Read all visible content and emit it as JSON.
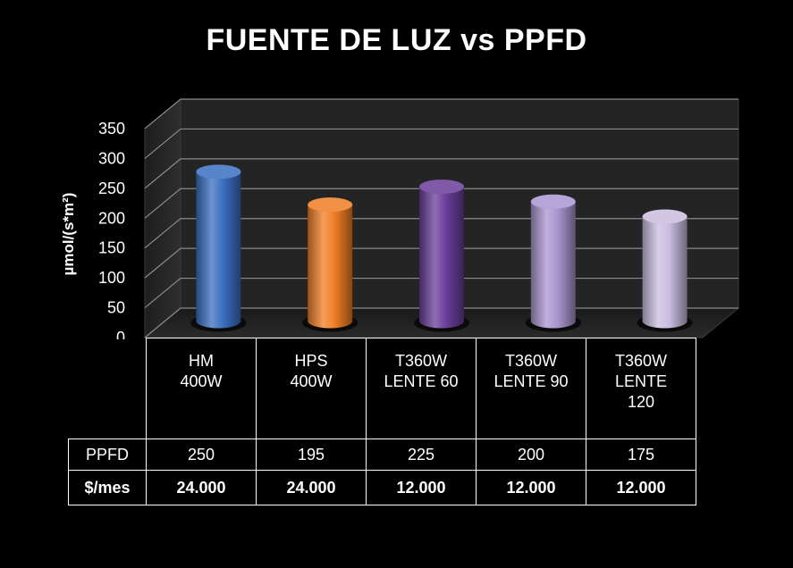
{
  "chart_data": {
    "type": "bar",
    "title": "FUENTE DE LUZ vs PPFD",
    "ylabel": "µmol/(s*m²)",
    "ylim": [
      0,
      350
    ],
    "yticks": [
      0,
      50,
      100,
      150,
      200,
      250,
      300,
      350
    ],
    "grid": true,
    "legend": "none",
    "categories": [
      "HM 400W",
      "HPS 400W",
      "T360W LENTE 60",
      "T360W LENTE 90",
      "T360W LENTE 120"
    ],
    "category_lines": [
      [
        "HM",
        "400W"
      ],
      [
        "HPS",
        "400W"
      ],
      [
        "T360W",
        "LENTE 60"
      ],
      [
        "T360W",
        "LENTE 90"
      ],
      [
        "T360W",
        "LENTE",
        "120"
      ]
    ],
    "series": [
      {
        "name": "PPFD",
        "values": [
          250,
          195,
          225,
          200,
          175
        ]
      }
    ],
    "colors": [
      "#3a6fc0",
      "#f07e24",
      "#6a3d9a",
      "#a995d0",
      "#c9bde0"
    ],
    "table": {
      "rows": [
        {
          "label": "PPFD",
          "values": [
            "250",
            "195",
            "225",
            "200",
            "175"
          ]
        },
        {
          "label": "$/mes",
          "values": [
            "24.000",
            "24.000",
            "12.000",
            "12.000",
            "12.000"
          ]
        }
      ]
    }
  }
}
